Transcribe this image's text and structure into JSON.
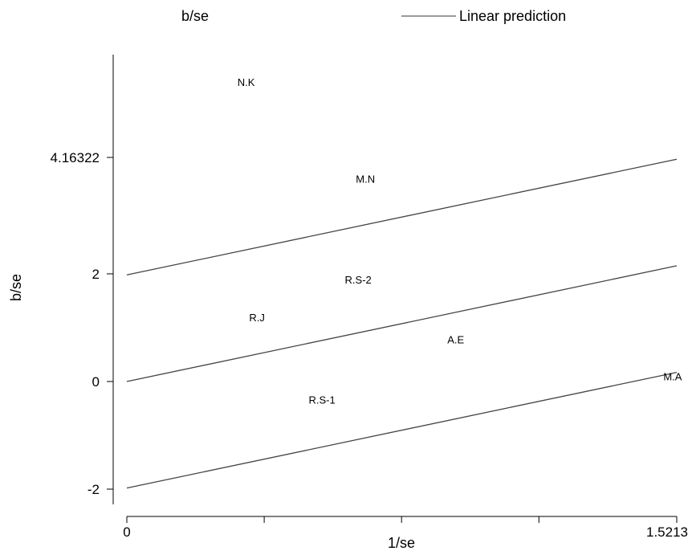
{
  "chart_data": {
    "type": "scatter",
    "xlabel": "1/se",
    "ylabel": "b/se",
    "xlim": [
      0,
      1.5213
    ],
    "ylim": [
      -2.25,
      5.9
    ],
    "x_ticks": [
      0,
      0.38,
      0.76,
      1.14,
      1.5213
    ],
    "x_tick_labels": [
      "0",
      "",
      "",
      "",
      "1.5213"
    ],
    "y_ticks": [
      -2,
      0,
      2,
      4.16322
    ],
    "y_tick_labels": [
      "-2",
      "0",
      "2",
      "4.16322"
    ],
    "grid": false,
    "legend": {
      "placement": "top",
      "entries": [
        {
          "label": "b/se",
          "marker": "none"
        },
        {
          "label": "Linear prediction",
          "marker": "line",
          "color": "#999999"
        }
      ]
    },
    "points": [
      {
        "label": "N.K",
        "x": 0.33,
        "y": 5.55
      },
      {
        "label": "M.N",
        "x": 0.66,
        "y": 3.75
      },
      {
        "label": "R.S-2",
        "x": 0.64,
        "y": 1.88
      },
      {
        "label": "R.J",
        "x": 0.36,
        "y": 1.18
      },
      {
        "label": "A.E",
        "x": 0.91,
        "y": 0.77
      },
      {
        "label": "M.A",
        "x": 1.51,
        "y": 0.08
      },
      {
        "label": "R.S-1",
        "x": 0.54,
        "y": -0.35
      }
    ],
    "lines": [
      {
        "x": [
          0,
          1.5213
        ],
        "y": [
          0,
          2.15
        ]
      },
      {
        "x": [
          0,
          1.5213
        ],
        "y": [
          1.98,
          4.13
        ]
      },
      {
        "x": [
          0,
          1.5213
        ],
        "y": [
          -1.98,
          0.17
        ]
      }
    ]
  },
  "colors": {
    "axis": "#000000",
    "fit_line": "#444444",
    "legend_line": "#999999"
  }
}
